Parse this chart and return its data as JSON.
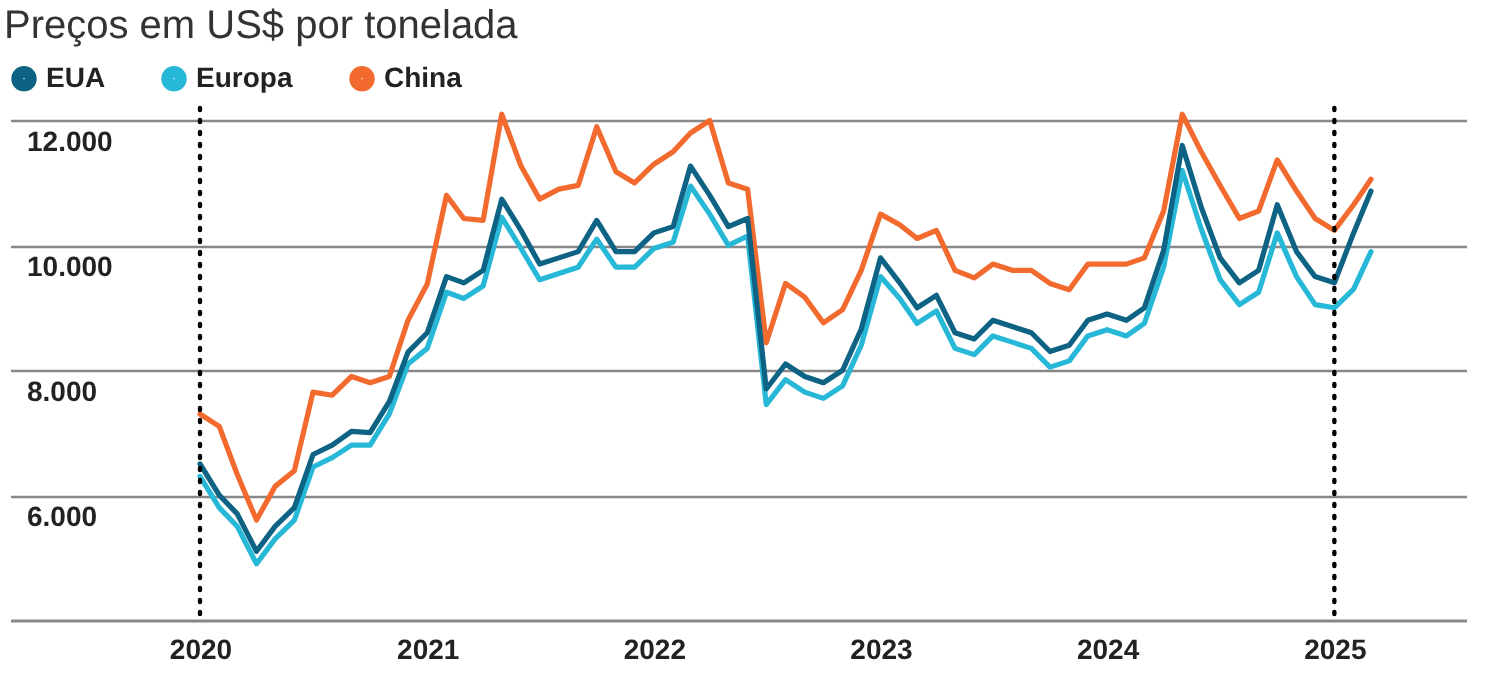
{
  "chart_data": {
    "type": "line",
    "title": "Preços em US$ por tonelada",
    "x": [
      "2020-01",
      "2020-02",
      "2020-03",
      "2020-04",
      "2020-05",
      "2020-06",
      "2020-07",
      "2020-08",
      "2020-09",
      "2020-10",
      "2020-11",
      "2020-12",
      "2021-01",
      "2021-02",
      "2021-03",
      "2021-04",
      "2021-05",
      "2021-06",
      "2021-07",
      "2021-08",
      "2021-09",
      "2021-10",
      "2021-11",
      "2021-12",
      "2022-01",
      "2022-02",
      "2022-03",
      "2022-04",
      "2022-05",
      "2022-06",
      "2022-07",
      "2022-08",
      "2022-09",
      "2022-10",
      "2022-11",
      "2022-12",
      "2023-01",
      "2023-02",
      "2023-03",
      "2023-04",
      "2023-05",
      "2023-06",
      "2023-07",
      "2023-08",
      "2023-09",
      "2023-10",
      "2023-11",
      "2023-12",
      "2024-01",
      "2024-02",
      "2024-03",
      "2024-04",
      "2024-05",
      "2024-06",
      "2024-07",
      "2024-08",
      "2024-09",
      "2024-10",
      "2024-11",
      "2024-12",
      "2025-01",
      "2025-02",
      "2025-03"
    ],
    "series": [
      {
        "name": "EUA",
        "color": "#0e6384",
        "values": [
          6500,
          6000,
          5700,
          5100,
          5500,
          5800,
          6650,
          6800,
          7020,
          7000,
          7500,
          8290,
          8600,
          9500,
          9400,
          9600,
          10740,
          10240,
          9700,
          9800,
          9900,
          10400,
          9900,
          9900,
          10200,
          10300,
          11270,
          10800,
          10300,
          10430,
          7700,
          8100,
          7900,
          7800,
          8000,
          8660,
          9800,
          9400,
          9000,
          9200,
          8600,
          8500,
          8800,
          8700,
          8600,
          8300,
          8400,
          8800,
          8900,
          8800,
          9000,
          9920,
          11600,
          10600,
          9800,
          9400,
          9600,
          10650,
          9900,
          9500,
          9400,
          10200,
          10870
        ]
      },
      {
        "name": "Europa",
        "color": "#27b8d8",
        "values": [
          6300,
          5800,
          5500,
          4900,
          5300,
          5600,
          6450,
          6600,
          6800,
          6800,
          7300,
          8100,
          8350,
          9250,
          9150,
          9350,
          10450,
          9950,
          9450,
          9550,
          9650,
          10100,
          9650,
          9650,
          9950,
          10050,
          10950,
          10500,
          10000,
          10150,
          7450,
          7850,
          7650,
          7550,
          7750,
          8400,
          9500,
          9150,
          8750,
          8950,
          8350,
          8250,
          8550,
          8450,
          8350,
          8050,
          8150,
          8550,
          8650,
          8550,
          8750,
          9650,
          11200,
          10250,
          9450,
          9050,
          9250,
          10200,
          9500,
          9050,
          9000,
          9300,
          9900
        ]
      },
      {
        "name": "China",
        "color": "#f26a2e",
        "values": [
          7300,
          7100,
          6330,
          5600,
          6140,
          6390,
          7650,
          7600,
          7900,
          7800,
          7900,
          8800,
          9380,
          10800,
          10430,
          10400,
          12100,
          11270,
          10740,
          10900,
          10960,
          11900,
          11180,
          11000,
          11300,
          11500,
          11800,
          12000,
          11000,
          10900,
          8440,
          9390,
          9170,
          8760,
          8970,
          9600,
          10500,
          10330,
          10110,
          10240,
          9600,
          9480,
          9700,
          9600,
          9600,
          9390,
          9290,
          9700,
          9700,
          9700,
          9800,
          10550,
          12100,
          11490,
          10960,
          10430,
          10550,
          11370,
          10870,
          10430,
          10240,
          10650,
          11060
        ]
      }
    ],
    "xlim": [
      "2019-03",
      "2025-08"
    ],
    "xticks": [
      "2020",
      "2021",
      "2022",
      "2023",
      "2024",
      "2025"
    ],
    "ylim": [
      4000,
      12200
    ],
    "yticks": [
      {
        "value": 6000,
        "label": "6.000"
      },
      {
        "value": 8000,
        "label": "8.000"
      },
      {
        "value": 10000,
        "label": "10.000"
      },
      {
        "value": 12000,
        "label": "12.000"
      }
    ],
    "grid": "y",
    "legend": "top left",
    "line_style": "solid",
    "marker": "none",
    "ref_lines": [
      {
        "axis": "x",
        "value": "2020",
        "color": "#000000",
        "line_style": "dotted"
      },
      {
        "axis": "x",
        "value": "2025",
        "color": "#000000",
        "line_style": "dotted"
      }
    ]
  }
}
